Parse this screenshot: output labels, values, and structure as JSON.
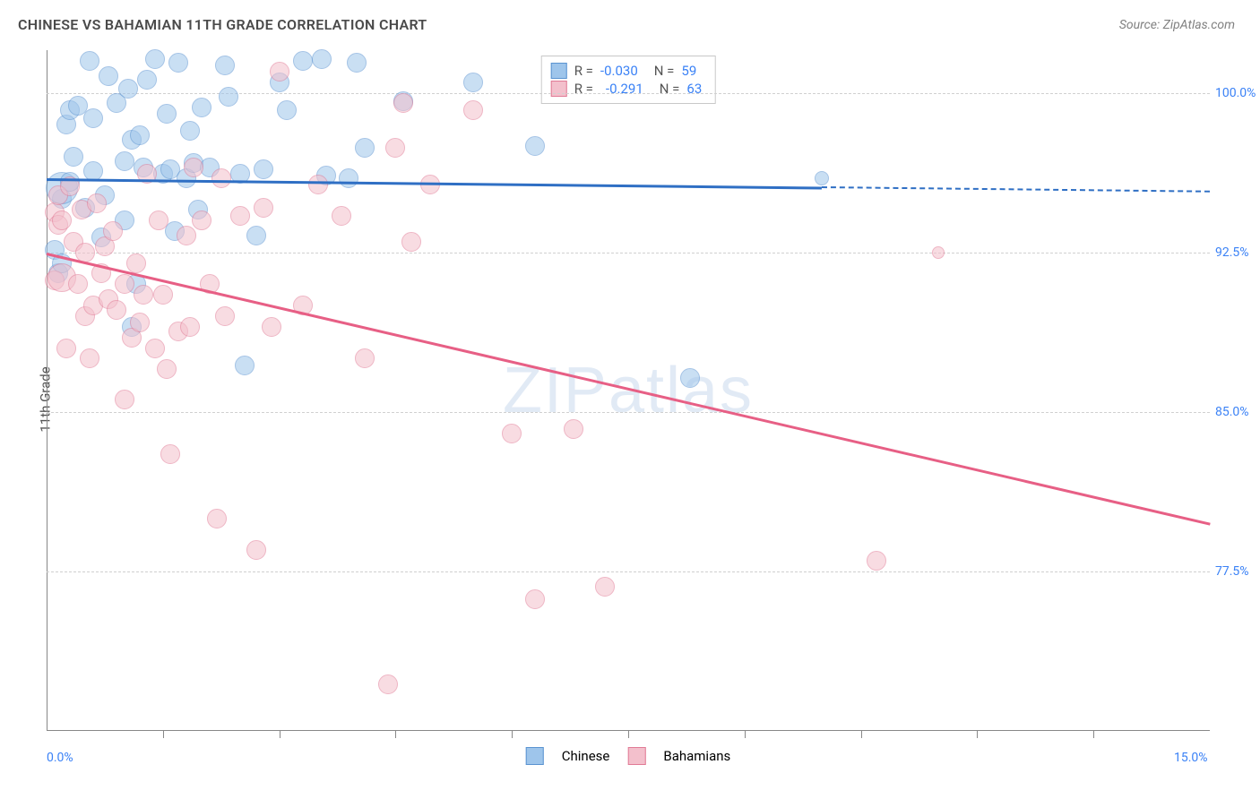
{
  "title": "CHINESE VS BAHAMIAN 11TH GRADE CORRELATION CHART",
  "source": "Source: ZipAtlas.com",
  "ylabel": "11th Grade",
  "watermark": "ZIPatlas",
  "chart": {
    "type": "scatter",
    "x_min": 0.0,
    "x_max": 15.0,
    "x_min_label": "0.0%",
    "x_max_label": "15.0%",
    "y_min": 70.0,
    "y_max": 102.0,
    "y_ticks": [
      77.5,
      85.0,
      92.5,
      100.0
    ],
    "y_tick_labels": [
      "77.5%",
      "85.0%",
      "92.5%",
      "100.0%"
    ],
    "x_tick_positions": [
      1.5,
      3.0,
      4.5,
      6.0,
      7.5,
      9.0,
      10.5,
      12.0,
      13.5
    ],
    "background_color": "#ffffff",
    "grid_color": "#d0d0d0",
    "marker_radius": 11,
    "marker_opacity": 0.55,
    "series": [
      {
        "name": "Chinese",
        "color_fill": "#9ec5eb",
        "color_stroke": "#5a93d1",
        "color_line": "#2f6fc4",
        "R": "-0.030",
        "N": "59",
        "trend": {
          "x1": 0.0,
          "y1": 96.0,
          "x2": 10.0,
          "y2": 95.6,
          "dash_to_x": 15.0
        },
        "points": [
          [
            0.1,
            92.6
          ],
          [
            0.15,
            91.5
          ],
          [
            0.2,
            95.0
          ],
          [
            0.2,
            92.0
          ],
          [
            0.2,
            95.5,
            18
          ],
          [
            0.25,
            98.5
          ],
          [
            0.3,
            99.2
          ],
          [
            0.3,
            95.8
          ],
          [
            0.35,
            97.0
          ],
          [
            0.4,
            99.4
          ],
          [
            0.5,
            94.6
          ],
          [
            0.55,
            101.5
          ],
          [
            0.6,
            96.3
          ],
          [
            0.6,
            98.8
          ],
          [
            0.7,
            93.2
          ],
          [
            0.75,
            95.2
          ],
          [
            0.8,
            100.8
          ],
          [
            0.9,
            99.5
          ],
          [
            1.0,
            96.8
          ],
          [
            1.0,
            94.0
          ],
          [
            1.05,
            100.2
          ],
          [
            1.1,
            97.8
          ],
          [
            1.1,
            89.0
          ],
          [
            1.15,
            91.0
          ],
          [
            1.2,
            98.0
          ],
          [
            1.25,
            96.5
          ],
          [
            1.3,
            100.6
          ],
          [
            1.4,
            101.6
          ],
          [
            1.5,
            96.2
          ],
          [
            1.55,
            99.0
          ],
          [
            1.6,
            96.4
          ],
          [
            1.65,
            93.5
          ],
          [
            1.7,
            101.4
          ],
          [
            1.8,
            96.0
          ],
          [
            1.85,
            98.2
          ],
          [
            1.9,
            96.7
          ],
          [
            1.95,
            94.5
          ],
          [
            2.0,
            99.3
          ],
          [
            2.1,
            96.5
          ],
          [
            2.3,
            101.3
          ],
          [
            2.35,
            99.8
          ],
          [
            2.5,
            96.2
          ],
          [
            2.55,
            87.2
          ],
          [
            2.7,
            93.3
          ],
          [
            2.8,
            96.4
          ],
          [
            3.0,
            100.5
          ],
          [
            3.1,
            99.2
          ],
          [
            3.3,
            101.5
          ],
          [
            3.55,
            101.6
          ],
          [
            3.6,
            96.1
          ],
          [
            3.9,
            96.0
          ],
          [
            4.0,
            101.4
          ],
          [
            4.1,
            97.4
          ],
          [
            4.6,
            99.6
          ],
          [
            5.5,
            100.5
          ],
          [
            6.3,
            97.5
          ],
          [
            8.3,
            86.6
          ],
          [
            10.0,
            96.0,
            8
          ]
        ]
      },
      {
        "name": "Bahamians",
        "color_fill": "#f3c0cc",
        "color_stroke": "#e17a95",
        "color_line": "#e75f85",
        "R": "-0.291",
        "N": "63",
        "trend": {
          "x1": 0.0,
          "y1": 92.5,
          "x2": 15.0,
          "y2": 79.8
        },
        "points": [
          [
            0.1,
            94.4
          ],
          [
            0.1,
            91.2
          ],
          [
            0.15,
            95.2
          ],
          [
            0.15,
            93.8
          ],
          [
            0.2,
            91.3,
            16
          ],
          [
            0.2,
            94.0
          ],
          [
            0.25,
            88.0
          ],
          [
            0.3,
            95.6
          ],
          [
            0.35,
            93.0
          ],
          [
            0.4,
            91.0
          ],
          [
            0.45,
            94.5
          ],
          [
            0.5,
            92.5
          ],
          [
            0.5,
            89.5
          ],
          [
            0.55,
            87.5
          ],
          [
            0.6,
            90.0
          ],
          [
            0.65,
            94.8
          ],
          [
            0.7,
            91.5
          ],
          [
            0.75,
            92.8
          ],
          [
            0.8,
            90.3
          ],
          [
            0.85,
            93.5
          ],
          [
            0.9,
            89.8
          ],
          [
            1.0,
            91.0
          ],
          [
            1.0,
            85.6
          ],
          [
            1.1,
            88.5
          ],
          [
            1.15,
            92.0
          ],
          [
            1.2,
            89.2
          ],
          [
            1.25,
            90.5
          ],
          [
            1.3,
            96.2
          ],
          [
            1.4,
            88.0
          ],
          [
            1.45,
            94.0
          ],
          [
            1.5,
            90.5
          ],
          [
            1.55,
            87.0
          ],
          [
            1.6,
            83.0
          ],
          [
            1.7,
            88.8
          ],
          [
            1.8,
            93.3
          ],
          [
            1.85,
            89.0
          ],
          [
            1.9,
            96.5
          ],
          [
            2.0,
            94.0
          ],
          [
            2.1,
            91.0
          ],
          [
            2.2,
            80.0
          ],
          [
            2.25,
            96.0
          ],
          [
            2.3,
            89.5
          ],
          [
            2.5,
            94.2
          ],
          [
            2.7,
            78.5
          ],
          [
            2.8,
            94.6
          ],
          [
            2.9,
            89.0
          ],
          [
            3.0,
            101.0
          ],
          [
            3.3,
            90.0
          ],
          [
            3.5,
            95.7
          ],
          [
            3.8,
            94.2
          ],
          [
            4.1,
            87.5
          ],
          [
            4.4,
            72.2
          ],
          [
            4.5,
            97.4
          ],
          [
            4.6,
            99.5
          ],
          [
            4.7,
            93.0
          ],
          [
            4.95,
            95.7
          ],
          [
            5.5,
            99.2
          ],
          [
            6.0,
            84.0
          ],
          [
            6.3,
            76.2
          ],
          [
            6.8,
            84.2
          ],
          [
            7.2,
            76.8
          ],
          [
            10.7,
            78.0
          ],
          [
            11.5,
            92.5,
            7
          ]
        ]
      }
    ]
  }
}
